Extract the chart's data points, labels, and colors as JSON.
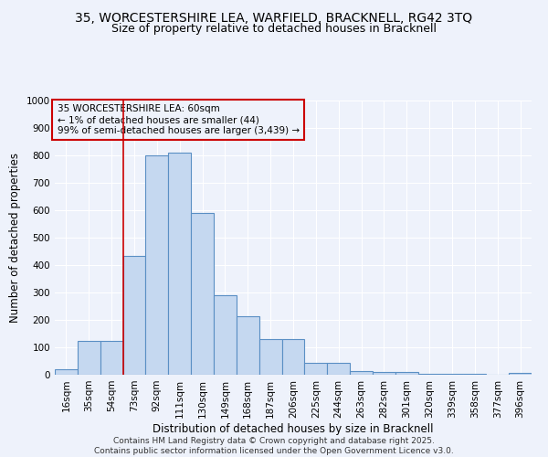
{
  "title_line1": "35, WORCESTERSHIRE LEA, WARFIELD, BRACKNELL, RG42 3TQ",
  "title_line2": "Size of property relative to detached houses in Bracknell",
  "xlabel": "Distribution of detached houses by size in Bracknell",
  "ylabel": "Number of detached properties",
  "categories": [
    "16sqm",
    "35sqm",
    "54sqm",
    "73sqm",
    "92sqm",
    "111sqm",
    "130sqm",
    "149sqm",
    "168sqm",
    "187sqm",
    "206sqm",
    "225sqm",
    "244sqm",
    "263sqm",
    "282sqm",
    "301sqm",
    "320sqm",
    "339sqm",
    "358sqm",
    "377sqm",
    "396sqm"
  ],
  "values": [
    20,
    125,
    125,
    435,
    800,
    810,
    590,
    290,
    215,
    130,
    130,
    42,
    42,
    15,
    10,
    10,
    5,
    5,
    5,
    0,
    8
  ],
  "bar_color": "#c5d8f0",
  "bar_edge_color": "#5a8fc4",
  "bar_edge_width": 0.8,
  "vline_color": "#cc0000",
  "vline_x_index": 2.5,
  "annotation_text_line1": "35 WORCESTERSHIRE LEA: 60sqm",
  "annotation_text_line2": "← 1% of detached houses are smaller (44)",
  "annotation_text_line3": "99% of semi-detached houses are larger (3,439) →",
  "ylim": [
    0,
    1000
  ],
  "yticks": [
    0,
    100,
    200,
    300,
    400,
    500,
    600,
    700,
    800,
    900,
    1000
  ],
  "footer_line1": "Contains HM Land Registry data © Crown copyright and database right 2025.",
  "footer_line2": "Contains public sector information licensed under the Open Government Licence v3.0.",
  "background_color": "#eef2fb",
  "grid_color": "#ffffff",
  "title_fontsize": 10,
  "subtitle_fontsize": 9,
  "axis_label_fontsize": 8.5,
  "tick_fontsize": 7.5,
  "annotation_fontsize": 7.5,
  "footer_fontsize": 6.5
}
